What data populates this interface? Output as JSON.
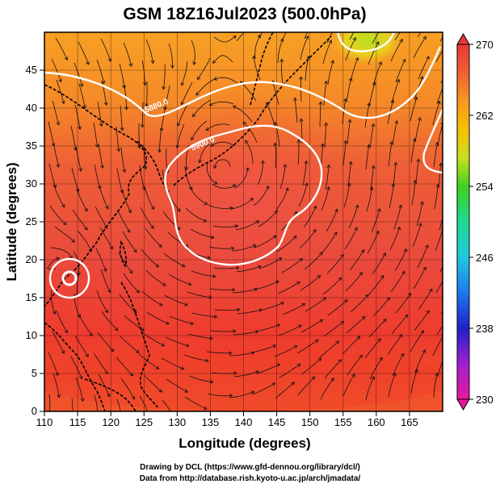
{
  "map": {
    "title": "GSM 18Z16Jul2023 (500.0hPa)",
    "xlabel": "Longitude (degrees)",
    "ylabel": "Latitude (degrees)",
    "lon_range": [
      110,
      170
    ],
    "lat_range": [
      0,
      50
    ],
    "lon_ticks": [
      "110",
      "115",
      "120",
      "125",
      "130",
      "135",
      "140",
      "145",
      "150",
      "155",
      "160",
      "165"
    ],
    "lat_ticks": [
      "0",
      "5",
      "10",
      "15",
      "20",
      "25",
      "30",
      "35",
      "40",
      "45"
    ],
    "colorbar": {
      "labels": [
        "270",
        "262",
        "254",
        "246",
        "238",
        "230"
      ],
      "min": 230,
      "max": 270,
      "colors": [
        "#e8189c",
        "#a020d0",
        "#2020c8",
        "#1e78f0",
        "#20c8e0",
        "#20d890",
        "#40d020",
        "#c8e020",
        "#f8c000",
        "#f89820",
        "#f06030",
        "#e83838"
      ]
    },
    "contours": [
      {
        "label": "5880.0",
        "lon": 127,
        "lat": 40
      },
      {
        "label": "5900.0",
        "lon": 134,
        "lat": 35
      }
    ],
    "credits": [
      "Drawing by DCL (https://www.gfd-dennou.org/library/dcl/)",
      "Data from http://database.rish.kyoto-u.ac.jp/arch/jmadata/"
    ]
  }
}
